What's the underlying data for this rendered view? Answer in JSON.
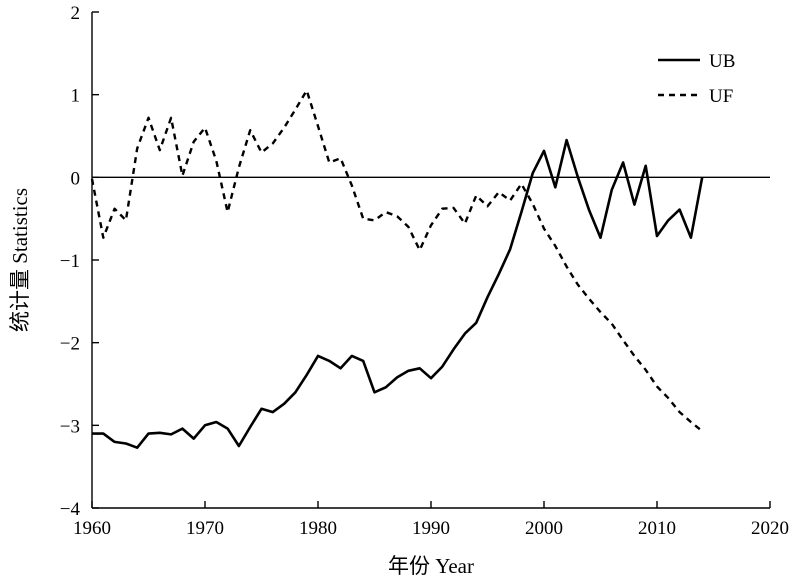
{
  "chart_data": {
    "type": "line",
    "title": "",
    "xlabel": "年份 Year",
    "ylabel": "统计量 Statistics",
    "xlim": [
      1960,
      2020
    ],
    "ylim": [
      -4,
      2
    ],
    "xticks": [
      1960,
      1970,
      1980,
      1990,
      2000,
      2010,
      2020
    ],
    "yticks": [
      2,
      1,
      0,
      -1,
      -2,
      -3,
      -4
    ],
    "xtick_labels": [
      "1960",
      "1970",
      "1980",
      "1990",
      "2000",
      "2010",
      "2020"
    ],
    "ytick_labels": [
      "2",
      "1",
      "0",
      "−1",
      "−2",
      "−3",
      "−4"
    ],
    "reference_line_y": 0,
    "grid": false,
    "legend_position": "top-right",
    "x": [
      1960,
      1961,
      1962,
      1963,
      1964,
      1965,
      1966,
      1967,
      1968,
      1969,
      1970,
      1971,
      1972,
      1973,
      1974,
      1975,
      1976,
      1977,
      1978,
      1979,
      1980,
      1981,
      1982,
      1983,
      1984,
      1985,
      1986,
      1987,
      1988,
      1989,
      1990,
      1991,
      1992,
      1993,
      1994,
      1995,
      1996,
      1997,
      1998,
      1999,
      2000,
      2001,
      2002,
      2003,
      2004,
      2005,
      2006,
      2007,
      2008,
      2009,
      2010,
      2011,
      2012,
      2013,
      2014
    ],
    "series": [
      {
        "name": "UB",
        "style": "solid",
        "values": [
          -3.1,
          -3.1,
          -3.2,
          -3.22,
          -3.27,
          -3.1,
          -3.09,
          -3.11,
          -3.04,
          -3.16,
          -3.0,
          -2.96,
          -3.04,
          -3.25,
          -3.02,
          -2.8,
          -2.84,
          -2.74,
          -2.6,
          -2.39,
          -2.16,
          -2.22,
          -2.31,
          -2.16,
          -2.22,
          -2.6,
          -2.54,
          -2.42,
          -2.34,
          -2.31,
          -2.43,
          -2.29,
          -2.08,
          -1.89,
          -1.76,
          -1.45,
          -1.17,
          -0.87,
          -0.42,
          0.05,
          0.32,
          -0.12,
          0.45,
          0.0,
          -0.4,
          -0.73,
          -0.15,
          0.18,
          -0.33,
          0.14,
          -0.71,
          -0.52,
          -0.39,
          -0.73,
          0.0
        ]
      },
      {
        "name": "UF",
        "style": "dashed",
        "values": [
          -0.02,
          -0.73,
          -0.38,
          -0.52,
          0.35,
          0.72,
          0.33,
          0.72,
          0.02,
          0.43,
          0.6,
          0.2,
          -0.42,
          0.12,
          0.57,
          0.3,
          0.41,
          0.6,
          0.82,
          1.05,
          0.62,
          0.18,
          0.23,
          -0.1,
          -0.5,
          -0.52,
          -0.42,
          -0.47,
          -0.6,
          -0.88,
          -0.58,
          -0.38,
          -0.37,
          -0.56,
          -0.22,
          -0.35,
          -0.18,
          -0.28,
          -0.08,
          -0.32,
          -0.62,
          -0.83,
          -1.08,
          -1.3,
          -1.47,
          -1.63,
          -1.77,
          -1.97,
          -2.16,
          -2.33,
          -2.53,
          -2.67,
          -2.84,
          -2.96,
          -3.07
        ]
      }
    ]
  }
}
